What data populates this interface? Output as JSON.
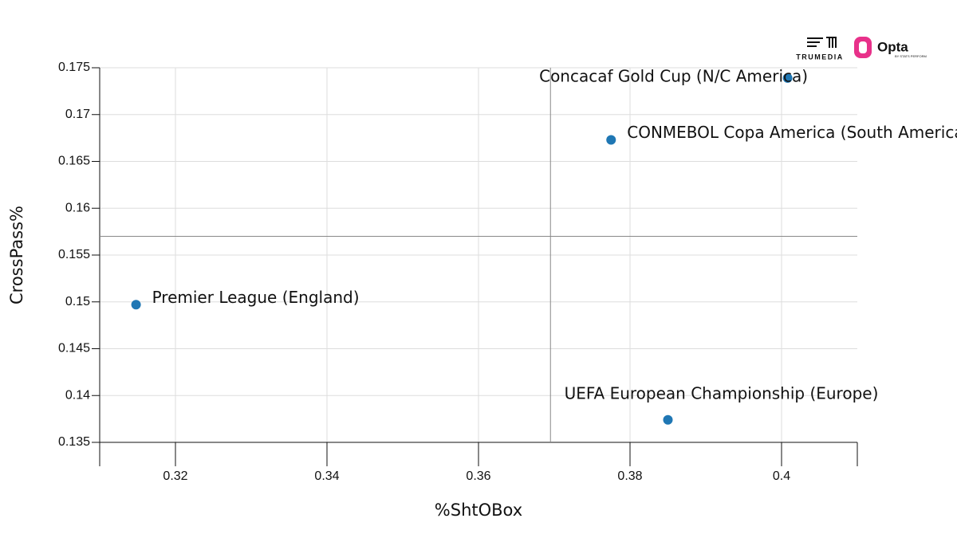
{
  "chart_data": {
    "type": "scatter",
    "x_label": "%ShtOBox",
    "y_label": "CrossPass%",
    "labels": [
      "Premier League (England)",
      "Concacaf Gold Cup (N/C America)",
      "CONMEBOL Copa America (South America)",
      "UEFA European Championship (Europe)"
    ],
    "x": [
      0.3148,
      0.4008,
      0.3775,
      0.385
    ],
    "values": [
      0.1497,
      0.1739,
      0.1673,
      0.1374
    ],
    "color": "#1f77b4",
    "xlim": [
      0.31,
      0.41
    ],
    "xticks": [
      0.32,
      0.34,
      0.36,
      0.38,
      0.4
    ],
    "ylim": [
      0.135,
      0.175
    ],
    "yticks": [
      0.135,
      0.14,
      0.145,
      0.15,
      0.155,
      0.16,
      0.165,
      0.17,
      0.175
    ],
    "grid": true,
    "x_mean": 0.3695,
    "y_mean": 0.157
  },
  "logos": {
    "trumedia": "TRUMEDIA",
    "opta": "Opta",
    "opta_sub": "BY STATS PERFORM"
  }
}
